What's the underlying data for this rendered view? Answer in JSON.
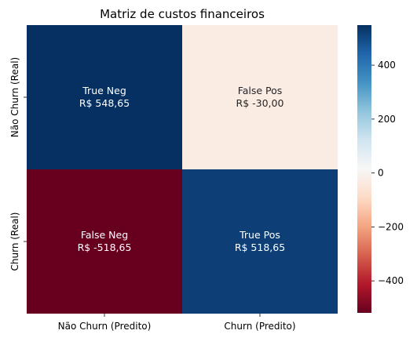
{
  "chart_data": {
    "type": "heatmap",
    "title": "Matriz de custos financeiros",
    "xlabel": "",
    "ylabel": "",
    "x_categories": [
      "Não Churn (Predito)",
      "Churn (Predito)"
    ],
    "y_categories": [
      "Não Churn (Real)",
      "Churn (Real)"
    ],
    "values": [
      [
        548.65,
        -30.0
      ],
      [
        -518.65,
        518.65
      ]
    ],
    "cell_labels": [
      [
        "True Neg",
        "False Pos"
      ],
      [
        "False Neg",
        "True Pos"
      ]
    ],
    "cell_values_text": [
      [
        "R$ 548,65",
        "R$ -30,00"
      ],
      [
        "R$ -518,65",
        "R$ 518,65"
      ]
    ],
    "colormap": "RdBu",
    "color_range": [
      -518.65,
      548.65
    ],
    "colorbar": {
      "ticks": [
        400,
        200,
        0,
        -200,
        -400
      ],
      "tick_labels": [
        "400",
        "200",
        "0",
        "−200",
        "−400"
      ]
    }
  }
}
